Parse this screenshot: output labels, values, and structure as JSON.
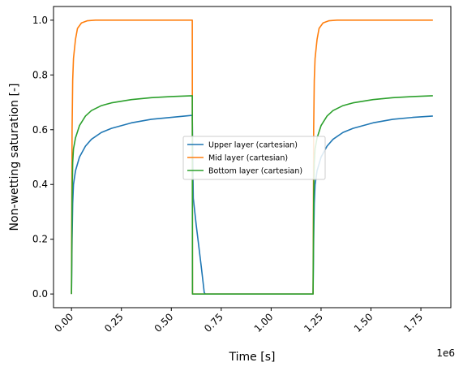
{
  "chart_data": {
    "type": "line",
    "title": "",
    "xlabel": "Time [s]",
    "ylabel": "Non-wetting saturation [-]",
    "x_offset_label": "1e6",
    "xlim": [
      -0.09,
      1.9
    ],
    "ylim": [
      -0.05,
      1.05
    ],
    "xticks": [
      0.0,
      0.25,
      0.5,
      0.75,
      1.0,
      1.25,
      1.5,
      1.75
    ],
    "xtick_labels": [
      "0.00",
      "0.25",
      "0.50",
      "0.75",
      "1.00",
      "1.25",
      "1.50",
      "1.75"
    ],
    "yticks": [
      0.0,
      0.2,
      0.4,
      0.6,
      0.8,
      1.0
    ],
    "ytick_labels": [
      "0.0",
      "0.2",
      "0.4",
      "0.6",
      "0.8",
      "1.0"
    ],
    "grid": false,
    "legend_position": "center-right",
    "series": [
      {
        "name": "Upper layer (cartesian)",
        "color": "#1f77b4",
        "points": [
          [
            0.0,
            0.0
          ],
          [
            0.003,
            0.2
          ],
          [
            0.006,
            0.33
          ],
          [
            0.01,
            0.4
          ],
          [
            0.02,
            0.45
          ],
          [
            0.04,
            0.5
          ],
          [
            0.07,
            0.54
          ],
          [
            0.1,
            0.565
          ],
          [
            0.15,
            0.59
          ],
          [
            0.2,
            0.605
          ],
          [
            0.3,
            0.625
          ],
          [
            0.4,
            0.638
          ],
          [
            0.5,
            0.645
          ],
          [
            0.6,
            0.652
          ],
          [
            0.605,
            0.652
          ],
          [
            0.61,
            0.35
          ],
          [
            0.625,
            0.25
          ],
          [
            0.65,
            0.1
          ],
          [
            0.665,
            0.005
          ],
          [
            0.67,
            0.0
          ],
          [
            1.21,
            0.0
          ],
          [
            1.213,
            0.2
          ],
          [
            1.216,
            0.33
          ],
          [
            1.22,
            0.4
          ],
          [
            1.23,
            0.45
          ],
          [
            1.25,
            0.5
          ],
          [
            1.28,
            0.54
          ],
          [
            1.31,
            0.565
          ],
          [
            1.36,
            0.59
          ],
          [
            1.41,
            0.605
          ],
          [
            1.51,
            0.625
          ],
          [
            1.61,
            0.638
          ],
          [
            1.71,
            0.645
          ],
          [
            1.81,
            0.65
          ]
        ]
      },
      {
        "name": "Mid layer (cartesian)",
        "color": "#ff7f0e",
        "points": [
          [
            0.0,
            0.0
          ],
          [
            0.003,
            0.6
          ],
          [
            0.006,
            0.78
          ],
          [
            0.01,
            0.86
          ],
          [
            0.02,
            0.93
          ],
          [
            0.03,
            0.97
          ],
          [
            0.05,
            0.99
          ],
          [
            0.08,
            0.998
          ],
          [
            0.12,
            1.0
          ],
          [
            0.605,
            1.0
          ],
          [
            0.606,
            0.0
          ],
          [
            1.21,
            0.0
          ],
          [
            1.213,
            0.6
          ],
          [
            1.216,
            0.78
          ],
          [
            1.22,
            0.86
          ],
          [
            1.23,
            0.93
          ],
          [
            1.24,
            0.97
          ],
          [
            1.26,
            0.99
          ],
          [
            1.29,
            0.998
          ],
          [
            1.33,
            1.0
          ],
          [
            1.81,
            1.0
          ]
        ]
      },
      {
        "name": "Bottom layer (cartesian)",
        "color": "#2ca02c",
        "points": [
          [
            0.0,
            0.0
          ],
          [
            0.003,
            0.35
          ],
          [
            0.006,
            0.48
          ],
          [
            0.01,
            0.53
          ],
          [
            0.02,
            0.57
          ],
          [
            0.04,
            0.615
          ],
          [
            0.07,
            0.65
          ],
          [
            0.1,
            0.67
          ],
          [
            0.15,
            0.688
          ],
          [
            0.2,
            0.698
          ],
          [
            0.3,
            0.71
          ],
          [
            0.4,
            0.717
          ],
          [
            0.5,
            0.721
          ],
          [
            0.605,
            0.724
          ],
          [
            0.606,
            0.0
          ],
          [
            1.21,
            0.0
          ],
          [
            1.213,
            0.35
          ],
          [
            1.216,
            0.48
          ],
          [
            1.22,
            0.53
          ],
          [
            1.23,
            0.57
          ],
          [
            1.25,
            0.615
          ],
          [
            1.28,
            0.65
          ],
          [
            1.31,
            0.67
          ],
          [
            1.36,
            0.688
          ],
          [
            1.41,
            0.698
          ],
          [
            1.51,
            0.71
          ],
          [
            1.61,
            0.717
          ],
          [
            1.71,
            0.721
          ],
          [
            1.81,
            0.724
          ]
        ]
      }
    ]
  }
}
